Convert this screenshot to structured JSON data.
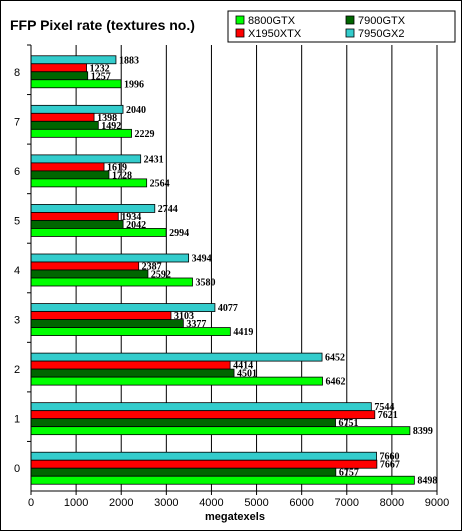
{
  "chart_data": {
    "type": "bar",
    "orientation": "horizontal",
    "title": "FFP Pixel rate (textures no.)",
    "xlabel": "megatexels",
    "ylabel": "",
    "xlim": [
      0,
      9000
    ],
    "xticks": [
      0,
      1000,
      2000,
      3000,
      4000,
      5000,
      6000,
      7000,
      8000,
      9000
    ],
    "grid": "vertical",
    "legend_position": "top-right",
    "categories": [
      "0",
      "1",
      "2",
      "3",
      "4",
      "5",
      "6",
      "7",
      "8"
    ],
    "series": [
      {
        "name": "8800GTX",
        "color": "#00ff00",
        "values": [
          8498,
          8399,
          6462,
          4419,
          3580,
          2994,
          2564,
          2229,
          1996
        ]
      },
      {
        "name": "7900GTX",
        "color": "#006600",
        "values": [
          6757,
          6751,
          4501,
          3377,
          2592,
          2042,
          1728,
          1492,
          1257
        ]
      },
      {
        "name": "X1950XTX",
        "color": "#ff0000",
        "values": [
          7667,
          7621,
          4414,
          3103,
          2387,
          1934,
          1619,
          1398,
          1232
        ]
      },
      {
        "name": "7950GX2",
        "color": "#33cccc",
        "values": [
          7660,
          7544,
          6452,
          4077,
          3494,
          2744,
          2431,
          2040,
          1883
        ]
      }
    ]
  }
}
